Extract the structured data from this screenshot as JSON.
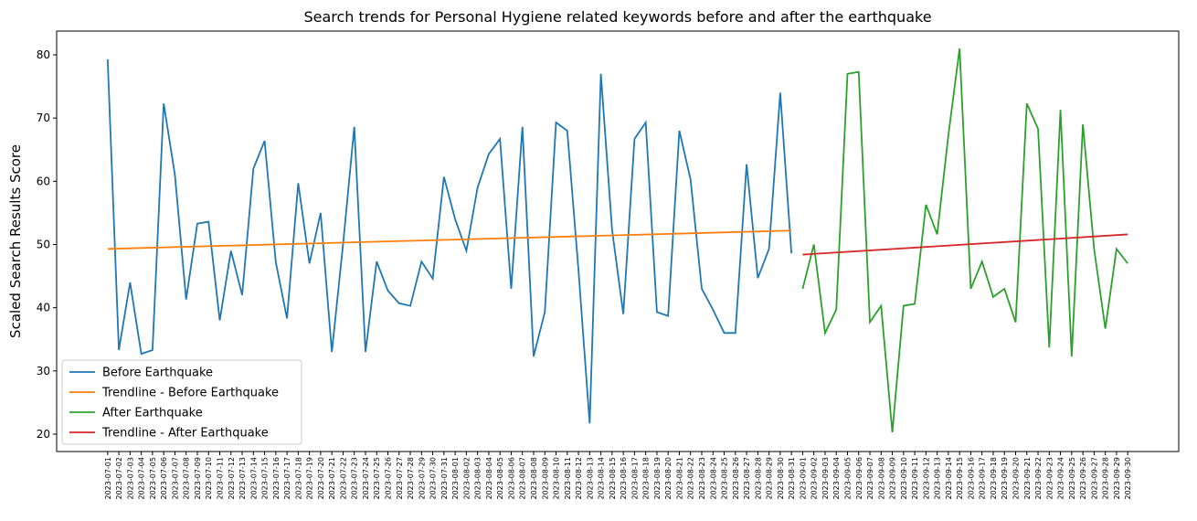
{
  "chart_data": {
    "type": "line",
    "title": "Search trends for Personal Hygiene related keywords before and after the earthquake",
    "ylabel": "Scaled Search Results Score",
    "categories": [
      "2023-07-01",
      "2023-07-02",
      "2023-07-03",
      "2023-07-04",
      "2023-07-05",
      "2023-07-06",
      "2023-07-07",
      "2023-07-08",
      "2023-07-09",
      "2023-07-10",
      "2023-07-11",
      "2023-07-12",
      "2023-07-13",
      "2023-07-14",
      "2023-07-15",
      "2023-07-16",
      "2023-07-17",
      "2023-07-18",
      "2023-07-19",
      "2023-07-20",
      "2023-07-21",
      "2023-07-22",
      "2023-07-23",
      "2023-07-24",
      "2023-07-25",
      "2023-07-26",
      "2023-07-27",
      "2023-07-28",
      "2023-07-29",
      "2023-07-30",
      "2023-07-31",
      "2023-08-01",
      "2023-08-02",
      "2023-08-03",
      "2023-08-04",
      "2023-08-05",
      "2023-08-06",
      "2023-08-07",
      "2023-08-08",
      "2023-08-09",
      "2023-08-10",
      "2023-08-11",
      "2023-08-12",
      "2023-08-13",
      "2023-08-14",
      "2023-08-15",
      "2023-08-16",
      "2023-08-17",
      "2023-08-18",
      "2023-08-19",
      "2023-08-20",
      "2023-08-21",
      "2023-08-22",
      "2023-08-23",
      "2023-08-24",
      "2023-08-25",
      "2023-08-26",
      "2023-08-27",
      "2023-08-28",
      "2023-08-29",
      "2023-08-30",
      "2023-08-31",
      "2023-09-01",
      "2023-09-02",
      "2023-09-03",
      "2023-09-04",
      "2023-09-05",
      "2023-09-06",
      "2023-09-07",
      "2023-09-08",
      "2023-09-09",
      "2023-09-10",
      "2023-09-11",
      "2023-09-12",
      "2023-09-13",
      "2023-09-14",
      "2023-09-15",
      "2023-09-16",
      "2023-09-17",
      "2023-09-18",
      "2023-09-19",
      "2023-09-20",
      "2023-09-21",
      "2023-09-22",
      "2023-09-23",
      "2023-09-24",
      "2023-09-25",
      "2023-09-26",
      "2023-09-27",
      "2023-09-28",
      "2023-09-29",
      "2023-09-30"
    ],
    "series": [
      {
        "name": "Before Earthquake",
        "color": "#1f77b4",
        "values": [
          79.3,
          33.3,
          44,
          32.7,
          33.3,
          72.3,
          61,
          41.3,
          53.3,
          53.6,
          38,
          49,
          42,
          62,
          66.4,
          47.2,
          38.3,
          59.7,
          47,
          55,
          33,
          50,
          68.6,
          33,
          47.3,
          42.7,
          40.7,
          40.3,
          47.3,
          44.6,
          60.7,
          54,
          49,
          59,
          64.3,
          66.7,
          43,
          68.6,
          32.3,
          39.3,
          69.3,
          68,
          46,
          21.7,
          77,
          52.3,
          39,
          66.7,
          69.3,
          39.3,
          38.7,
          68,
          60.3,
          43,
          39.7,
          36,
          36,
          62.7,
          44.7,
          49.3,
          74,
          48.6,
          null,
          null,
          null,
          null,
          null,
          null,
          null,
          null,
          null,
          null,
          null,
          null,
          null,
          null,
          null,
          null,
          null,
          null,
          null,
          null,
          null,
          null,
          null,
          null,
          null,
          null,
          null,
          null,
          null,
          null
        ]
      },
      {
        "name": "Trendline - Before Earthquake",
        "color": "#ff7f0e",
        "x": [
          "2023-07-01",
          "2023-08-31"
        ],
        "values": [
          49.3,
          52.2
        ]
      },
      {
        "name": "After Earthquake",
        "color": "#2ca02c",
        "values": [
          null,
          null,
          null,
          null,
          null,
          null,
          null,
          null,
          null,
          null,
          null,
          null,
          null,
          null,
          null,
          null,
          null,
          null,
          null,
          null,
          null,
          null,
          null,
          null,
          null,
          null,
          null,
          null,
          null,
          null,
          null,
          null,
          null,
          null,
          null,
          null,
          null,
          null,
          null,
          null,
          null,
          null,
          null,
          null,
          null,
          null,
          null,
          null,
          null,
          null,
          null,
          null,
          null,
          null,
          null,
          null,
          null,
          null,
          null,
          null,
          null,
          null,
          43,
          50,
          36,
          39.7,
          77,
          77.3,
          37.7,
          40.3,
          20.3,
          40.3,
          40.6,
          56.3,
          51.6,
          67.3,
          81,
          43,
          47.3,
          41.7,
          43,
          37.7,
          72.3,
          68.3,
          33.7,
          71.3,
          32.3,
          69,
          49.3,
          36.7,
          49.3,
          47
        ]
      },
      {
        "name": "Trendline - After Earthquake",
        "color": "#d62728",
        "x": [
          "2023-09-01",
          "2023-09-30"
        ],
        "values": [
          48.4,
          51.6
        ]
      }
    ],
    "ylim": [
      17.25,
      83.76
    ],
    "yticks": [
      20,
      30,
      40,
      50,
      60,
      70,
      80
    ],
    "grid": false,
    "legend": "lower left"
  }
}
